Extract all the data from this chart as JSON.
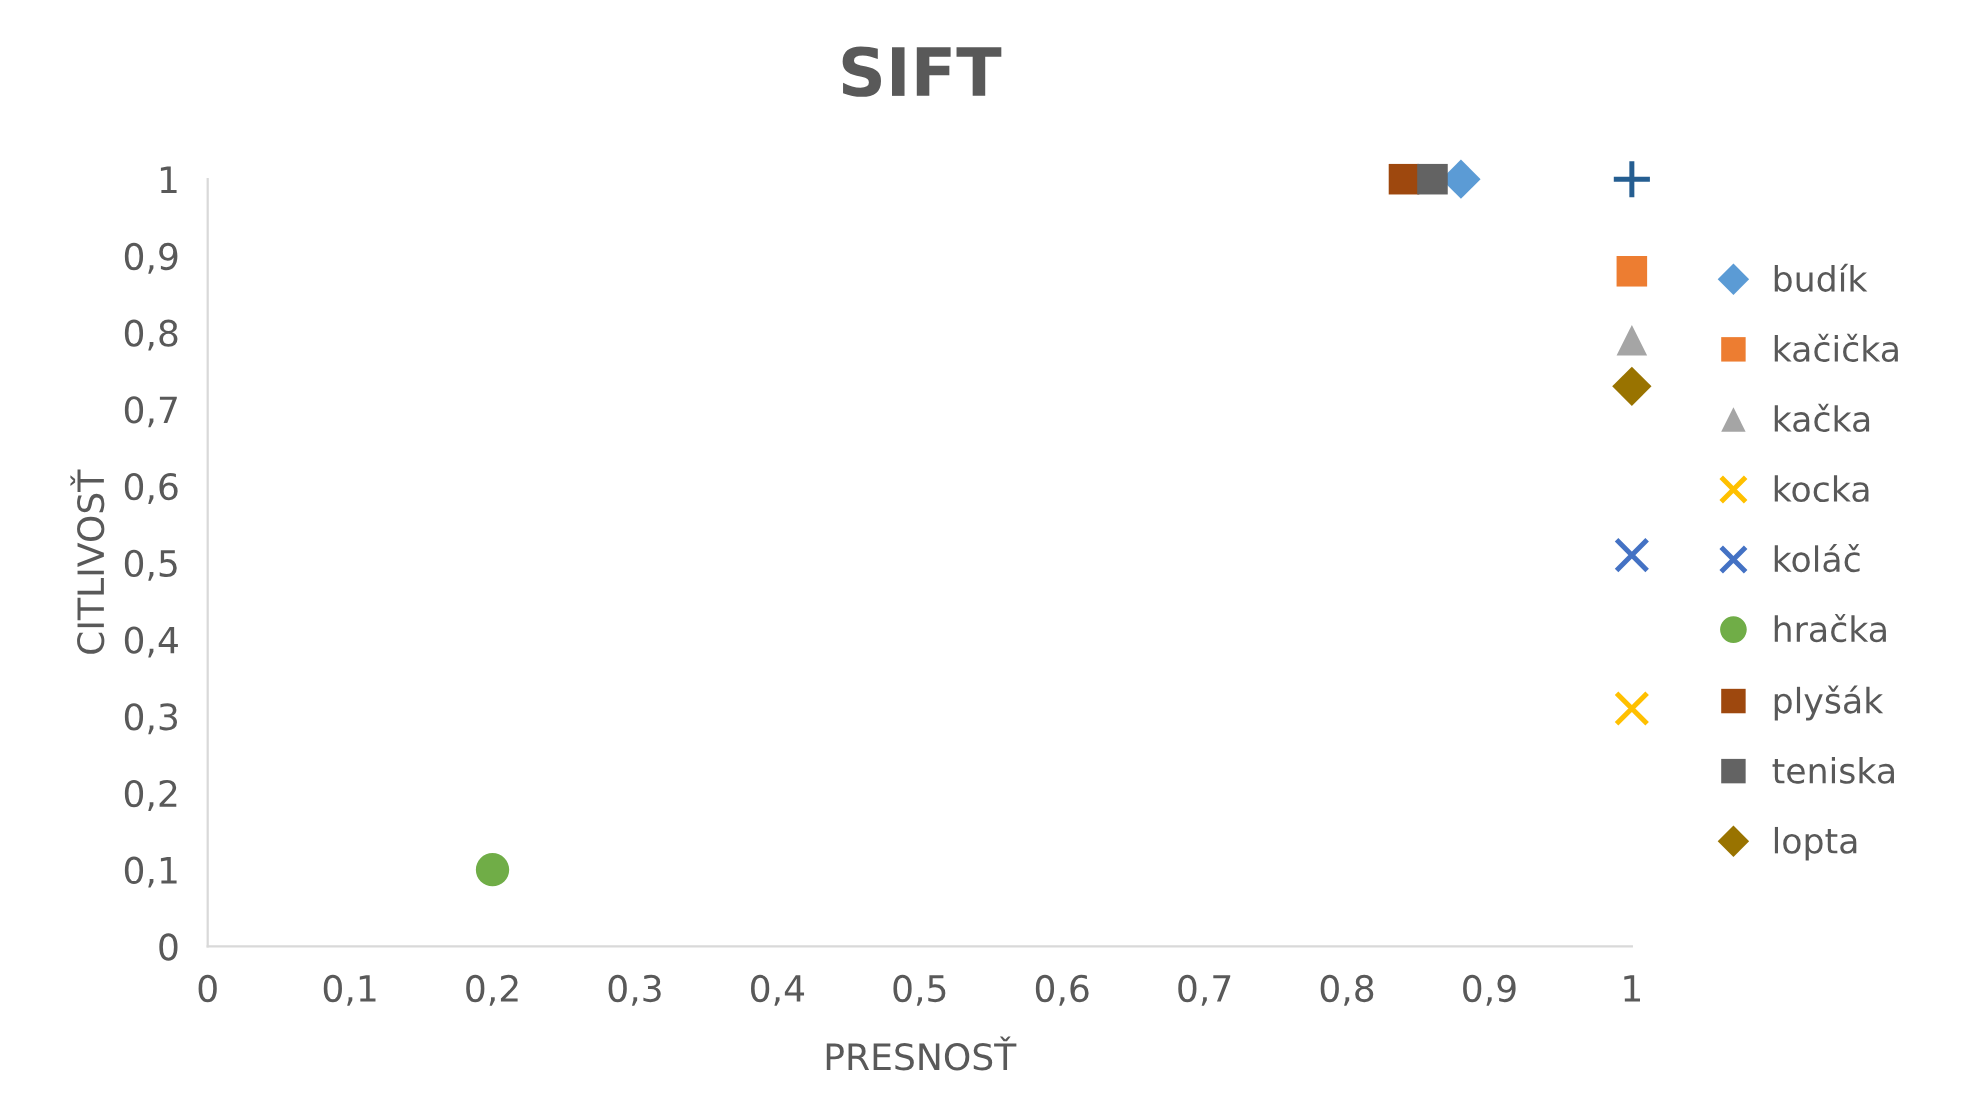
{
  "chart_data": {
    "type": "scatter",
    "title": "SIFT",
    "xlabel": "PRESNOSŤ",
    "ylabel": "CITLIVOSŤ",
    "xlim": [
      0,
      1
    ],
    "ylim": [
      0,
      1
    ],
    "xticks": [
      0,
      {
        "value": 0.1,
        "label": "0,1"
      },
      {
        "value": 0.2,
        "label": "0,2"
      },
      {
        "value": 0.3,
        "label": "0,3"
      },
      {
        "value": 0.4,
        "label": "0,4"
      },
      {
        "value": 0.5,
        "label": "0,5"
      },
      {
        "value": 0.6,
        "label": "0,6"
      },
      {
        "value": 0.7,
        "label": "0,7"
      },
      {
        "value": 0.8,
        "label": "0,8"
      },
      {
        "value": 0.9,
        "label": "0,9"
      },
      1
    ],
    "yticks": [
      0,
      {
        "value": 0.1,
        "label": "0,1"
      },
      {
        "value": 0.2,
        "label": "0,2"
      },
      {
        "value": 0.3,
        "label": "0,3"
      },
      {
        "value": 0.4,
        "label": "0,4"
      },
      {
        "value": 0.5,
        "label": "0,5"
      },
      {
        "value": 0.6,
        "label": "0,6"
      },
      {
        "value": 0.7,
        "label": "0,7"
      },
      {
        "value": 0.8,
        "label": "0,8"
      },
      {
        "value": 0.9,
        "label": "0,9"
      },
      1
    ],
    "grid": false,
    "legend": "right",
    "series": [
      {
        "name": "budík",
        "color": "#5b9bd5",
        "marker": "diamond",
        "x": [
          0.88
        ],
        "values": [
          1
        ]
      },
      {
        "name": "kačička",
        "color": "#ed7d31",
        "marker": "square",
        "x": [
          1
        ],
        "values": [
          0.88
        ]
      },
      {
        "name": "kačka",
        "color": "#a5a5a5",
        "marker": "triangle",
        "x": [
          1
        ],
        "values": [
          0.79
        ]
      },
      {
        "name": "kocka",
        "color": "#ffc000",
        "marker": "cross",
        "x": [
          1
        ],
        "values": [
          0.31
        ]
      },
      {
        "name": "koláč",
        "color": "#4472c4",
        "marker": "cross",
        "x": [
          1
        ],
        "values": [
          0.51
        ]
      },
      {
        "name": "hračka",
        "color": "#70ad47",
        "marker": "circle",
        "x": [
          0.2
        ],
        "values": [
          0.1
        ]
      },
      {
        "color": "#255e91",
        "x": [
          1
        ],
        "values": [
          1
        ]
      },
      {
        "name": "plyšák",
        "color": "#9e480e",
        "marker": "square",
        "x": [
          0.84
        ],
        "values": [
          1
        ]
      },
      {
        "name": "teniska",
        "color": "#636363",
        "marker": "square",
        "x": [
          0.86
        ],
        "values": [
          1
        ]
      },
      {
        "name": "lopta",
        "color": "#997300",
        "marker": "diamond",
        "x": [
          1
        ],
        "values": [
          0.73
        ]
      }
    ]
  }
}
